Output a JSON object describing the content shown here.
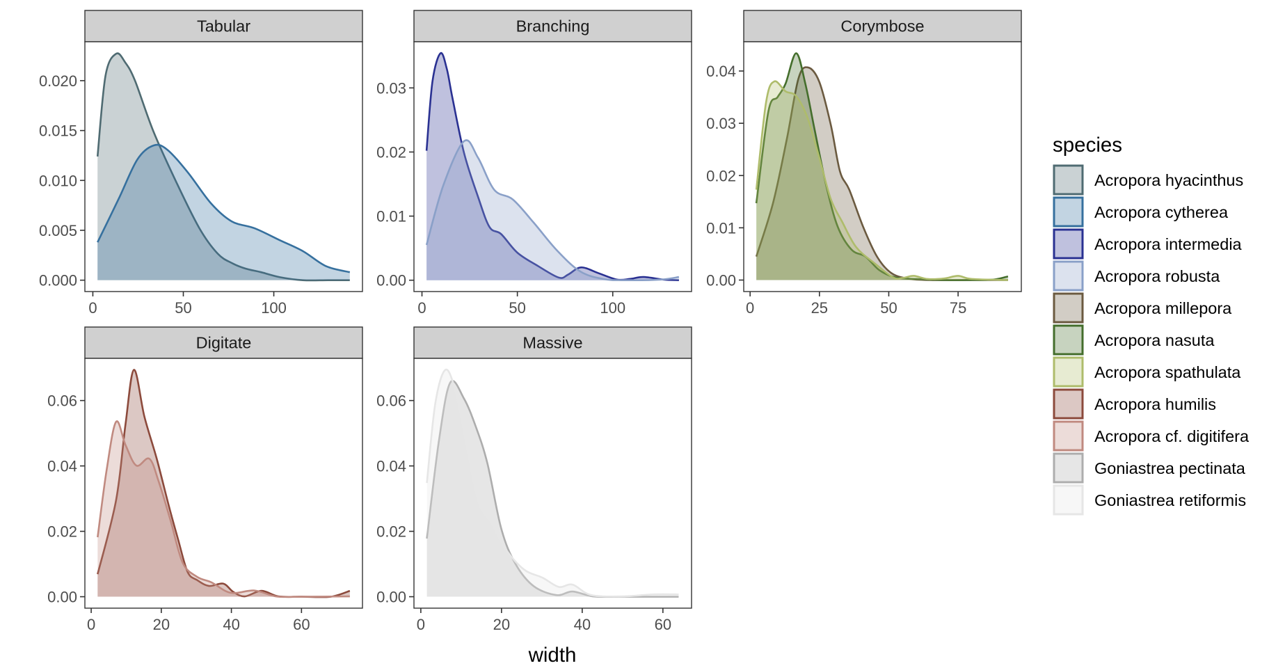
{
  "chart_data": {
    "type": "area",
    "subtype": "faceted density plot",
    "xlabel": "width",
    "ylabel": "",
    "legend": {
      "title": "species",
      "position": "right"
    },
    "species": [
      {
        "name": "Acropora hyacinthus",
        "color": "#4f6b72"
      },
      {
        "name": "Acropora cytherea",
        "color": "#36709e"
      },
      {
        "name": "Acropora intermedia",
        "color": "#2a3192"
      },
      {
        "name": "Acropora robusta",
        "color": "#8aa0c8"
      },
      {
        "name": "Acropora millepora",
        "color": "#6b5a40"
      },
      {
        "name": "Acropora nasuta",
        "color": "#446e2c"
      },
      {
        "name": "Acropora spathulata",
        "color": "#aebc6b"
      },
      {
        "name": "Acropora humilis",
        "color": "#8c4a3c"
      },
      {
        "name": "Acropora cf. digitifera",
        "color": "#c08a80"
      },
      {
        "name": "Goniastrea pectinata",
        "color": "#adadad"
      },
      {
        "name": "Goniastrea retiformis",
        "color": "#e6e6e6"
      }
    ],
    "fill_alpha": 0.3,
    "panels": [
      {
        "title": "Tabular",
        "xlim": [
          -4.4,
          149
        ],
        "ylim": [
          -0.00114,
          0.0239
        ],
        "xticks": [
          0,
          50,
          100
        ],
        "xtick_labels": [
          "0",
          "50",
          "100"
        ],
        "yticks": [
          0,
          0.005,
          0.01,
          0.015,
          0.02
        ],
        "ytick_labels": [
          "0.000",
          "0.005",
          "0.010",
          "0.015",
          "0.020"
        ],
        "series": [
          {
            "species": "Acropora hyacinthus",
            "x": [
              2.6,
              7,
              12.9,
              18,
              23.3,
              33.5,
              46.2,
              58.9,
              69,
              77,
              84.4,
              93,
              103.4,
              116,
              130,
              142
            ],
            "y": [
              0.0124,
              0.0205,
              0.0227,
              0.0218,
              0.02,
              0.0149,
              0.0098,
              0.0052,
              0.00266,
              0.0017,
              0.00116,
              0.0008,
              0.0003,
              0.0,
              0.0,
              0.0
            ]
          },
          {
            "species": "Acropora cytherea",
            "x": [
              2.6,
              14.4,
              24.6,
              33.5,
              41,
              52.5,
              65.3,
              76.7,
              89.4,
              103.4,
              116.2,
              128.9,
              142
            ],
            "y": [
              0.0038,
              0.0082,
              0.0121,
              0.0135,
              0.0131,
              0.0108,
              0.0077,
              0.0059,
              0.0052,
              0.004,
              0.0029,
              0.0014,
              0.0008
            ]
          }
        ]
      },
      {
        "title": "Branching",
        "xlim": [
          -4.2,
          141.3
        ],
        "ylim": [
          -0.00177,
          0.0372
        ],
        "xticks": [
          0,
          50,
          100
        ],
        "xtick_labels": [
          "0",
          "50",
          "100"
        ],
        "yticks": [
          0,
          0.01,
          0.02,
          0.03
        ],
        "ytick_labels": [
          "0.00",
          "0.01",
          "0.02",
          "0.03"
        ],
        "series": [
          {
            "species": "Acropora intermedia",
            "x": [
              2.4,
              5.5,
              9.7,
              13,
              16,
              22.1,
              29.4,
              35.4,
              41.5,
              50,
              60.9,
              71.8,
              76.7,
              83.4,
              92.5,
              102.2,
              109,
              116.1,
              126.5,
              134.7
            ],
            "y": [
              0.0202,
              0.031,
              0.0354,
              0.033,
              0.0284,
              0.0198,
              0.013,
              0.0083,
              0.0072,
              0.0043,
              0.0022,
              0.0004,
              0.0009,
              0.002,
              0.0011,
              0.0001,
              0.0002,
              0.0005,
              0.0001,
              0.0
            ]
          },
          {
            "species": "Acropora robusta",
            "x": [
              2.4,
              11.2,
              22.1,
              29.4,
              37.9,
              47.6,
              58.5,
              70.6,
              82.8,
              94.9,
              107,
              125.2,
              134.7
            ],
            "y": [
              0.0055,
              0.0148,
              0.0217,
              0.0191,
              0.0141,
              0.0126,
              0.009,
              0.0047,
              0.0014,
              0.0002,
              0.0,
              0.0001,
              0.0005
            ]
          }
        ]
      },
      {
        "title": "Corymbose",
        "xlim": [
          -2.3,
          97.8
        ],
        "ylim": [
          -0.0022,
          0.0456
        ],
        "xticks": [
          0,
          25,
          50,
          75
        ],
        "xtick_labels": [
          "0",
          "25",
          "50",
          "75"
        ],
        "yticks": [
          0,
          0.01,
          0.02,
          0.03,
          0.04
        ],
        "ytick_labels": [
          "0.00",
          "0.01",
          "0.02",
          "0.03",
          "0.04"
        ],
        "series": [
          {
            "species": "Acropora millepora",
            "x": [
              2.25,
              8.25,
              13.25,
              17.4,
              20.75,
              24.9,
              29.1,
              32.4,
              35.75,
              40.75,
              45.75,
              50.75,
              56.6,
              65,
              80,
              93
            ],
            "y": [
              0.0045,
              0.0147,
              0.027,
              0.0385,
              0.0407,
              0.038,
              0.0297,
              0.0208,
              0.0173,
              0.0102,
              0.0045,
              0.0014,
              0.0003,
              0.0,
              0.0,
              0.0
            ]
          },
          {
            "species": "Acropora nasuta",
            "x": [
              2.25,
              6.6,
              9.9,
              12.8,
              16.6,
              19.9,
              23.25,
              27.4,
              31.6,
              36.6,
              41.6,
              46.6,
              52.4,
              60,
              70,
              80,
              88,
              93
            ],
            "y": [
              0.0147,
              0.0323,
              0.035,
              0.0376,
              0.0434,
              0.0376,
              0.0288,
              0.0182,
              0.0102,
              0.0058,
              0.0045,
              0.0019,
              0.0005,
              0.0002,
              0.0,
              0.0,
              0.0001,
              0.0007
            ]
          },
          {
            "species": "Acropora spathulata",
            "x": [
              2.25,
              5.75,
              8.7,
              12.8,
              16.6,
              20.75,
              24.9,
              29.1,
              33.25,
              38.25,
              44.9,
              51.6,
              55,
              59,
              64,
              70,
              75,
              80,
              93
            ],
            "y": [
              0.0173,
              0.034,
              0.038,
              0.0361,
              0.0352,
              0.031,
              0.0235,
              0.0155,
              0.0111,
              0.0063,
              0.0032,
              0.0005,
              0.0004,
              0.0008,
              0.0002,
              0.0003,
              0.0008,
              0.0002,
              0.0
            ]
          }
        ]
      },
      {
        "title": "Digitate",
        "xlim": [
          -1.8,
          77.4
        ],
        "ylim": [
          -0.0035,
          0.0729
        ],
        "xticks": [
          0,
          20,
          40,
          60
        ],
        "xtick_labels": [
          "0",
          "20",
          "40",
          "60"
        ],
        "yticks": [
          0,
          0.02,
          0.04,
          0.06
        ],
        "ytick_labels": [
          "0.00",
          "0.02",
          "0.04",
          "0.06"
        ],
        "series": [
          {
            "species": "Acropora humilis",
            "x": [
              1.84,
              7.1,
              9.8,
              12.2,
              15.2,
              18.7,
              22.1,
              24.8,
              27.5,
              30.2,
              33.6,
              37.7,
              40.5,
              43.8,
              48.6,
              53.4,
              60,
              68.3,
              73.8
            ],
            "y": [
              0.0069,
              0.0295,
              0.0528,
              0.0694,
              0.055,
              0.0422,
              0.028,
              0.0175,
              0.0076,
              0.0051,
              0.0033,
              0.004,
              0.0015,
              0.0001,
              0.0018,
              0.0001,
              0.0,
              0.0,
              0.0018
            ]
          },
          {
            "species": "Acropora cf. digitifera",
            "x": [
              1.84,
              4.4,
              7.1,
              9.8,
              12.9,
              16.6,
              19.3,
              22.7,
              26.1,
              30.2,
              34.3,
              39.8,
              46.6,
              52.7,
              60,
              73.8
            ],
            "y": [
              0.0182,
              0.0387,
              0.0535,
              0.0464,
              0.0401,
              0.0422,
              0.0351,
              0.0231,
              0.0104,
              0.0061,
              0.0044,
              0.0012,
              0.0019,
              0.0001,
              0.0,
              0.0001
            ]
          }
        ]
      },
      {
        "title": "Massive",
        "xlim": [
          -1.7,
          67.1
        ],
        "ylim": [
          -0.0035,
          0.0729
        ],
        "xticks": [
          0,
          20,
          40,
          60
        ],
        "xtick_labels": [
          "0",
          "20",
          "40",
          "60"
        ],
        "yticks": [
          0,
          0.02,
          0.04,
          0.06
        ],
        "ytick_labels": [
          "0.00",
          "0.02",
          "0.04",
          "0.06"
        ],
        "series": [
          {
            "species": "Goniastrea pectinata",
            "x": [
              1.5,
              4.5,
              7.3,
              10.7,
              13.6,
              16.5,
              19.9,
              23.3,
              27.9,
              33.6,
              37.6,
              42.7,
              50,
              63.9
            ],
            "y": [
              0.0178,
              0.0478,
              0.0655,
              0.0606,
              0.0521,
              0.0408,
              0.021,
              0.0104,
              0.0033,
              0.0005,
              0.0016,
              0.0001,
              0.0,
              0.0
            ]
          },
          {
            "species": "Goniastrea retiformis",
            "x": [
              1.5,
              3.6,
              6.1,
              8.5,
              10.7,
              14.2,
              17.6,
              21,
              25.6,
              30.2,
              34.2,
              37.6,
              42.2,
              50,
              57.6,
              63.9
            ],
            "y": [
              0.0348,
              0.0592,
              0.0694,
              0.0634,
              0.0507,
              0.0295,
              0.0224,
              0.0146,
              0.0083,
              0.0058,
              0.003,
              0.0037,
              0.0005,
              0.0001,
              0.0007,
              0.0007
            ]
          }
        ]
      }
    ]
  }
}
